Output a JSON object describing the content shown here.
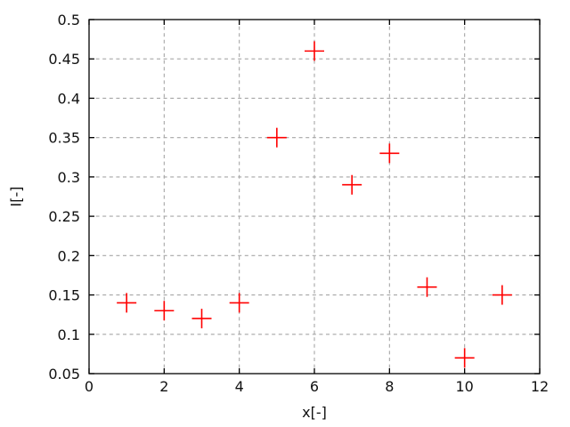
{
  "figure": {
    "background": "#ffffff"
  },
  "chart_data": {
    "type": "scatter",
    "title": "",
    "xlabel": "x[-]",
    "ylabel": "I[-]",
    "x": [
      1,
      2,
      3,
      4,
      5,
      6,
      7,
      8,
      9,
      10,
      11
    ],
    "y": [
      0.14,
      0.13,
      0.12,
      0.14,
      0.35,
      0.46,
      0.29,
      0.33,
      0.16,
      0.07,
      0.15
    ],
    "xlim": [
      0,
      12
    ],
    "ylim": [
      0.05,
      0.5
    ],
    "xticks": {
      "values": [
        0,
        2,
        4,
        6,
        8,
        10,
        12
      ],
      "labels": [
        "0",
        "2",
        "4",
        "6",
        "8",
        "10",
        "12"
      ]
    },
    "yticks": {
      "values": [
        0.05,
        0.1,
        0.15,
        0.2,
        0.25,
        0.3,
        0.35,
        0.4,
        0.45,
        0.5
      ],
      "labels": [
        "0.05",
        "0.1",
        "0.15",
        "0.2",
        "0.25",
        "0.3",
        "0.35",
        "0.4",
        "0.45",
        "0.5"
      ]
    },
    "grid": true,
    "legend": "none",
    "marker": {
      "shape": "plus",
      "color": "#ff0000",
      "size": 22,
      "stroke_width": 1.6
    },
    "colors": {
      "grid": "#a6a6a6",
      "frame": "#000000",
      "tick": "#000000",
      "text": "#111111"
    }
  }
}
